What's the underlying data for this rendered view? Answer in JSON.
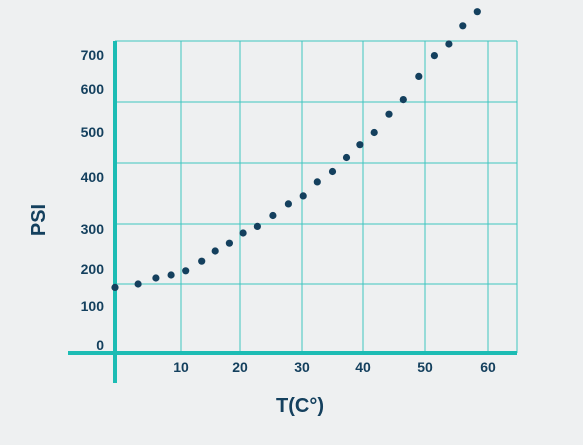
{
  "chart_data": {
    "type": "scatter",
    "xlabel": "T(C°)",
    "ylabel": "PSI",
    "x_ticks": [
      10,
      20,
      30,
      40,
      50,
      60
    ],
    "y_ticks": [
      0,
      100,
      200,
      300,
      400,
      500,
      600,
      700
    ],
    "x_tick_labels": [
      "10",
      "20",
      "30",
      "40",
      "50",
      "60"
    ],
    "y_tick_labels": [
      "0",
      "100",
      "200",
      "300",
      "400",
      "500",
      "600",
      "700"
    ],
    "xlim": [
      0,
      65
    ],
    "ylim": [
      0,
      700
    ],
    "grid": true,
    "colors": {
      "axis": "#1cbcb4",
      "grid": "#3ec6c0",
      "marker": "#14405e",
      "text": "#14405e"
    },
    "series": [
      {
        "x": [
          0,
          3.5,
          6.2,
          8.5,
          10.8,
          13.5,
          15.8,
          18.2,
          20.5,
          22.8,
          25.3,
          27.8,
          30.2,
          32.5,
          35,
          37.3,
          39.5,
          41.8,
          44.2,
          46.5,
          49,
          51.5,
          53.8,
          56,
          58.3,
          60.5
        ],
        "y": [
          95,
          100,
          110,
          115,
          122,
          138,
          155,
          168,
          185,
          196,
          214,
          233,
          246,
          269,
          286,
          309,
          330,
          350,
          380,
          404,
          442,
          476,
          495,
          525,
          548,
          583
        ]
      }
    ]
  }
}
